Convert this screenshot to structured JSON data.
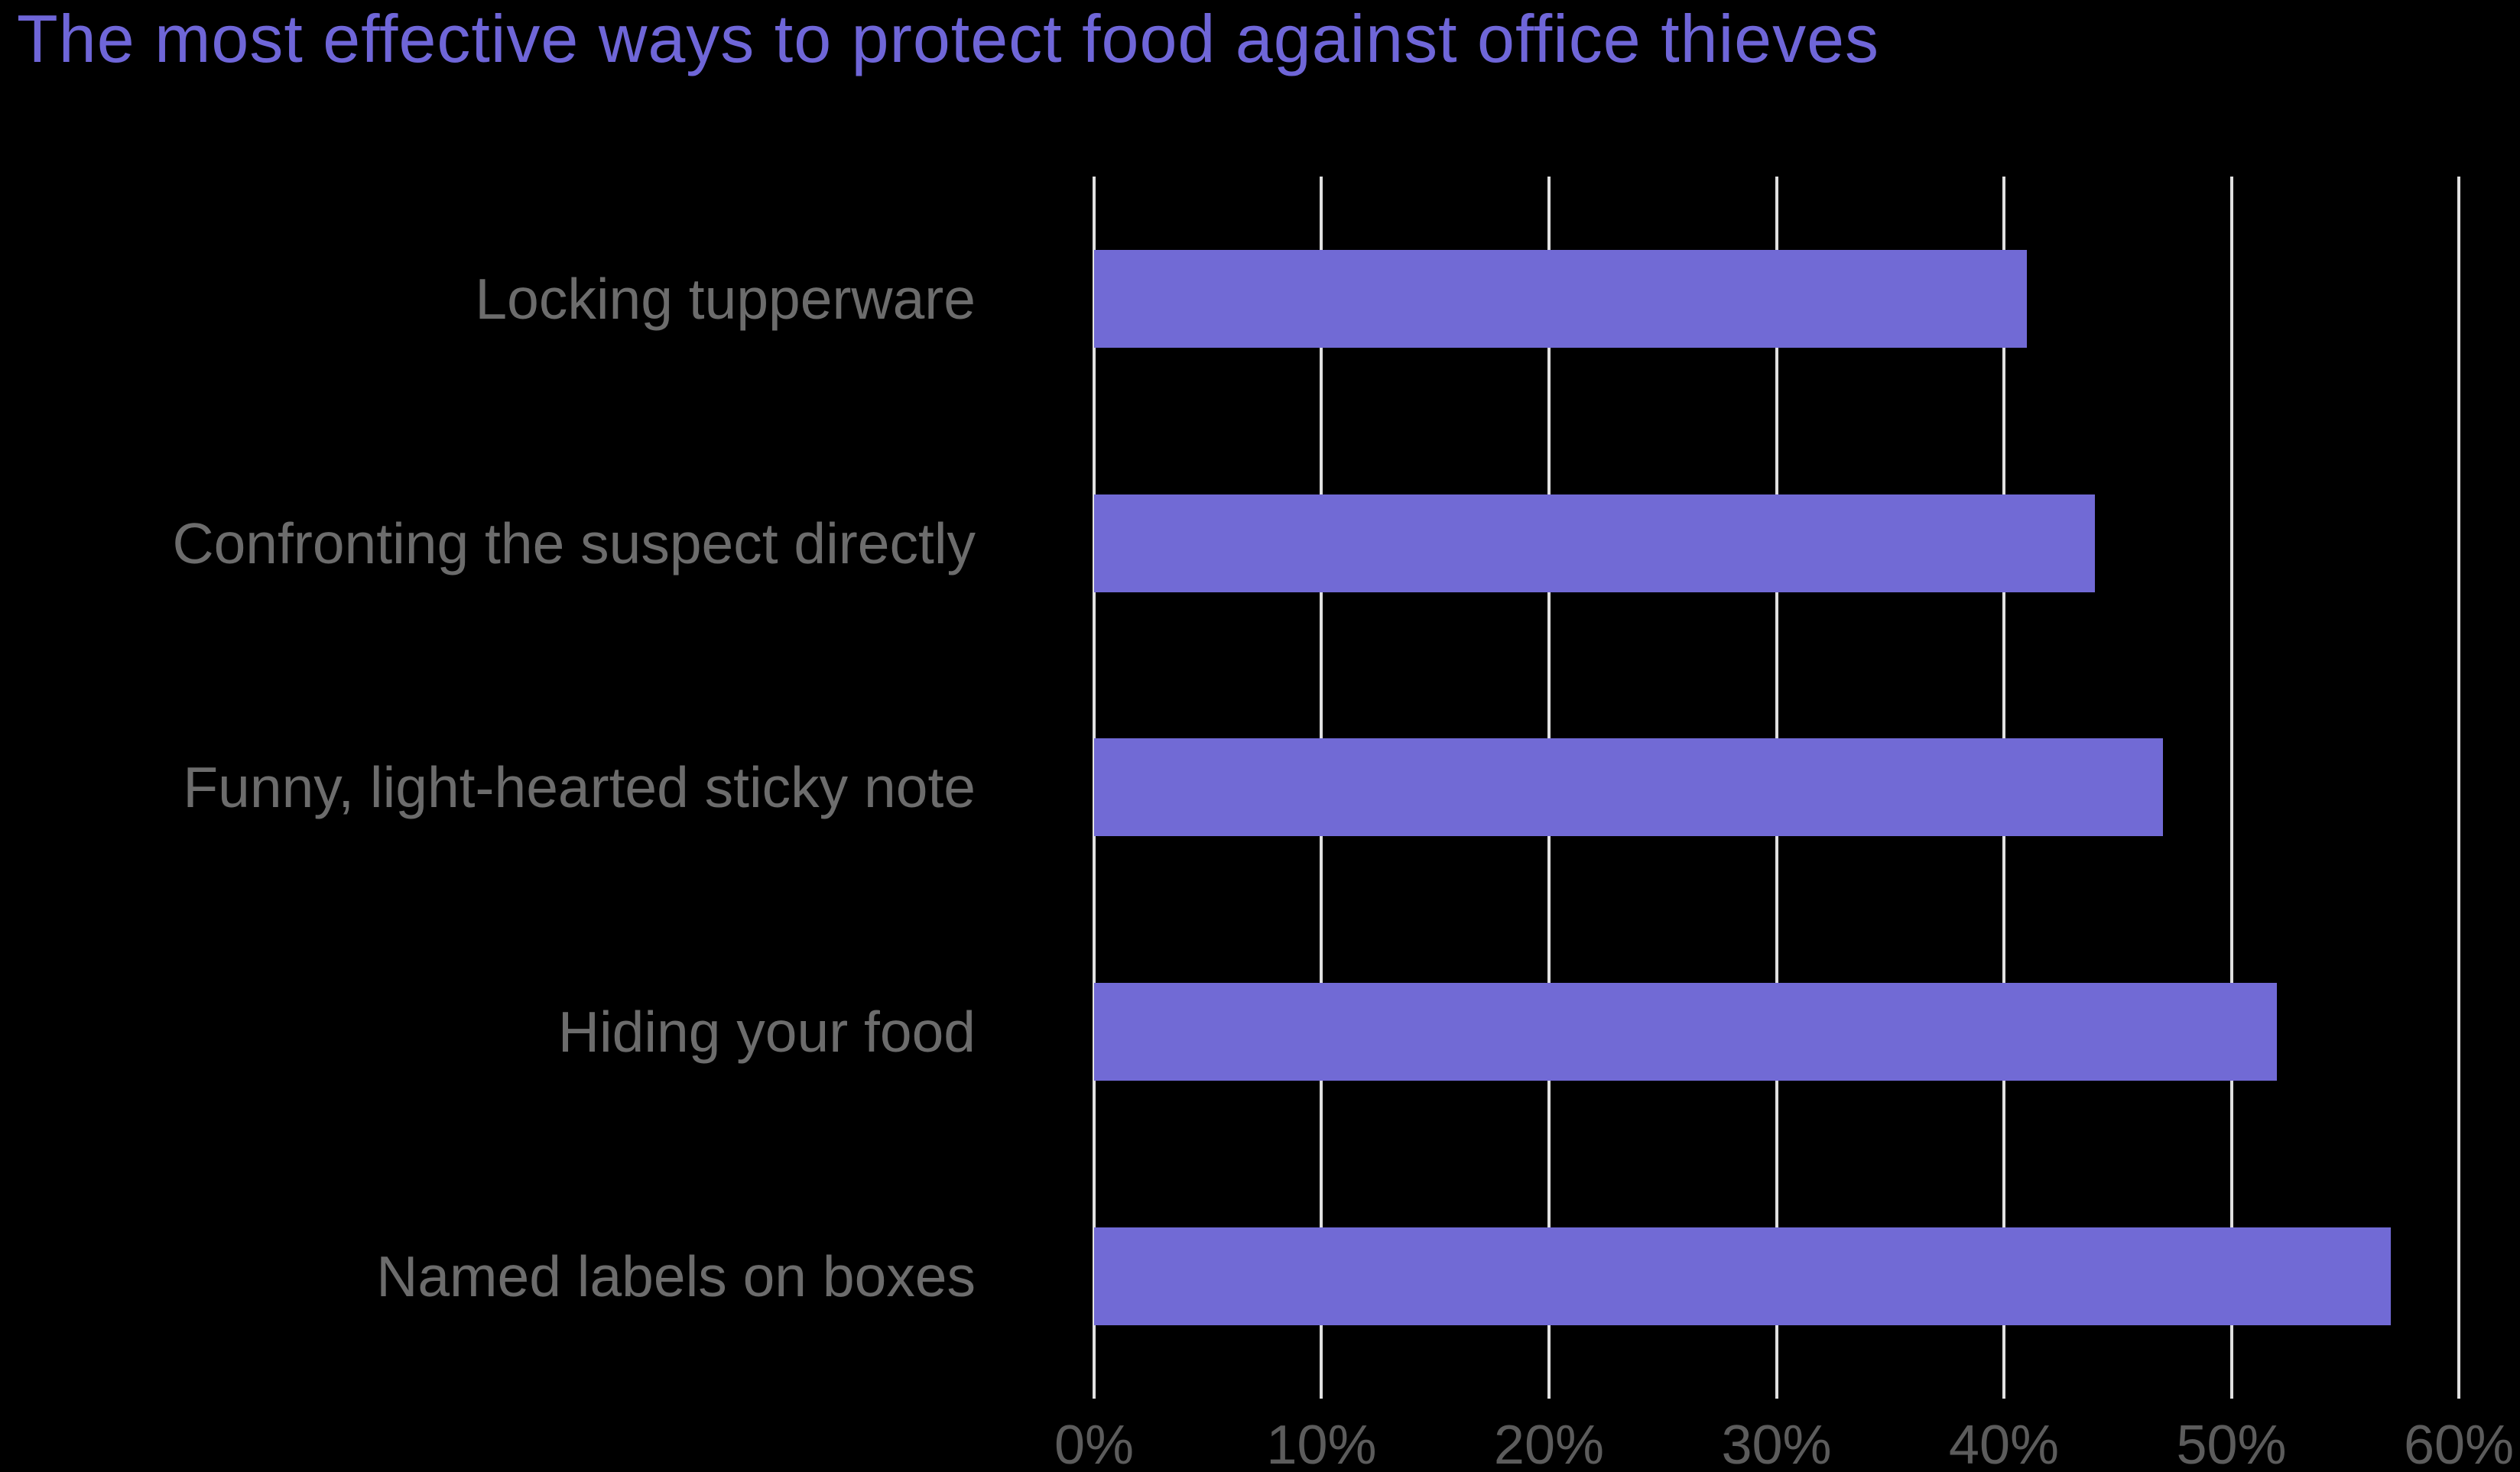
{
  "title": "The most effective ways to protect food against office thieves",
  "colors": {
    "background": "#000000",
    "title": "#6F66D8",
    "bar": "#716AD5",
    "gridline": "#E0E0E0",
    "category_label": "#6C6C6C",
    "tick_label": "#5C5C5C"
  },
  "chart_data": {
    "type": "bar",
    "orientation": "horizontal",
    "title": "The most effective ways to protect food against office thieves",
    "categories": [
      "Locking tupperware",
      "Confronting the suspect directly",
      "Funny, light-hearted sticky note",
      "Hiding your food",
      "Named labels on boxes"
    ],
    "values": [
      41,
      44,
      47,
      52,
      57
    ],
    "unit": "%",
    "xlabel": "",
    "ylabel": "",
    "xlim": [
      0,
      60
    ],
    "xticks": [
      0,
      10,
      20,
      30,
      40,
      50,
      60
    ],
    "xtick_labels": [
      "0%",
      "10%",
      "20%",
      "30%",
      "40%",
      "50%",
      "60%"
    ],
    "grid": true,
    "legend": false
  }
}
